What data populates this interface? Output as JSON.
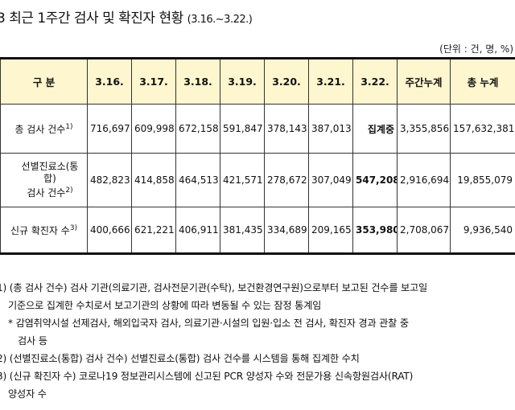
{
  "title": {
    "main": "3 최근 1주간 검사 및 확진자 현황",
    "range": "(3.16.~3.22.)"
  },
  "unit": "(단위 : 건, 명, %)",
  "table": {
    "headers": [
      "구 분",
      "3.16.",
      "3.17.",
      "3.18.",
      "3.19.",
      "3.20.",
      "3.21.",
      "3.22.",
      "주간누계",
      "총 누계"
    ],
    "rows": [
      {
        "label": "총 검사 건수",
        "sup": "1)",
        "values": [
          "716,697",
          "609,998",
          "672,158",
          "591,847",
          "378,143",
          "387,013",
          "집계중",
          "3,355,856",
          "157,632,381"
        ]
      },
      {
        "label_line1": "선별진료소(통합)",
        "label_line2": "검사 건수",
        "sup": "2)",
        "values": [
          "482,823",
          "414,858",
          "464,513",
          "421,571",
          "278,672",
          "307,049",
          "547,208",
          "2,916,694",
          "19,855,079"
        ]
      },
      {
        "label": "신규 확진자 수",
        "sup": "3)",
        "values": [
          "400,666",
          "621,221",
          "406,911",
          "381,435",
          "334,689",
          "209,165",
          "353,980",
          "2,708,067",
          "9,936,540"
        ]
      }
    ]
  },
  "notes": [
    "1) (총 검사 건수) 검사 기관(의료기관, 검사전문기관(수탁), 보건환경연구원)으로부터 보고된 건수를 보고일",
    "기준으로 집계한 수치로서 보고기관의 상황에 따라 변동될 수 있는 잠정 통계임",
    "* 감염취약시설 선제검사, 해외입국자 검사, 의료기관·시설의 입원·입소 전 검사, 확진자 경과 관찰 중",
    "검사 등",
    "2) (선별진료소(통합) 검사 건수) 선별진료소(통합) 검사 건수를 시스템을 통해 집계한 수치",
    "3) (신규 확진자 수) 코로나19 정보관리시스템에 신고된 PCR 양성자 수와 전문가용 신속항원검사(RAT)",
    "양성자 수"
  ]
}
